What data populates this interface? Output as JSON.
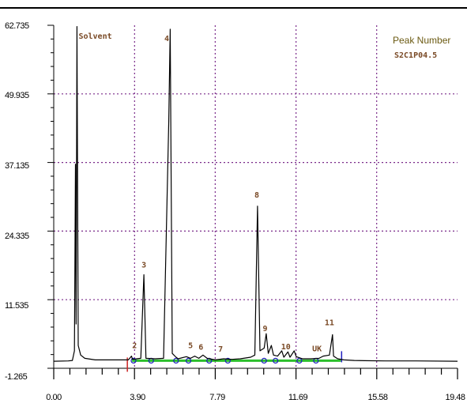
{
  "chart_data": {
    "type": "line",
    "title": "",
    "xlabel": "",
    "ylabel": "",
    "xlim": [
      0.0,
      19.48
    ],
    "ylim": [
      -1.265,
      62.735
    ],
    "x_ticks": [
      "0.00",
      "3.90",
      "7.79",
      "11.69",
      "15.58",
      "19.48"
    ],
    "y_ticks": [
      "62.735",
      "49.935",
      "37.135",
      "24.335",
      "11.535",
      "-1.265"
    ],
    "grid": "dotted",
    "legend": {
      "title": "Peak Number",
      "sample": "S2C1P04.5",
      "placement": "top-right"
    },
    "series": [
      {
        "points": [
          [
            0.0,
            0.05
          ],
          [
            0.7,
            0.1
          ],
          [
            0.9,
            0.2
          ],
          [
            1.0,
            2.0
          ],
          [
            1.05,
            36.8
          ],
          [
            1.08,
            7.0
          ],
          [
            1.12,
            62.5
          ],
          [
            1.18,
            3.0
          ],
          [
            1.3,
            1.2
          ],
          [
            1.5,
            0.6
          ],
          [
            2.0,
            0.3
          ],
          [
            3.0,
            0.3
          ],
          [
            3.6,
            0.3
          ],
          [
            3.75,
            1.0
          ],
          [
            3.8,
            0.4
          ],
          [
            4.0,
            0.5
          ],
          [
            4.2,
            0.6
          ],
          [
            4.35,
            16.2
          ],
          [
            4.45,
            0.6
          ],
          [
            4.9,
            0.5
          ],
          [
            5.3,
            0.6
          ],
          [
            5.55,
            45.0
          ],
          [
            5.62,
            62.0
          ],
          [
            5.72,
            1.5
          ],
          [
            5.9,
            0.8
          ],
          [
            6.0,
            0.5
          ],
          [
            6.4,
            0.9
          ],
          [
            6.6,
            0.6
          ],
          [
            6.8,
            1.0
          ],
          [
            7.0,
            0.6
          ],
          [
            7.2,
            1.2
          ],
          [
            7.4,
            0.6
          ],
          [
            7.8,
            0.3
          ],
          [
            8.2,
            0.5
          ],
          [
            8.6,
            0.4
          ],
          [
            9.0,
            0.5
          ],
          [
            9.5,
            0.8
          ],
          [
            9.7,
            1.2
          ],
          [
            9.83,
            29.0
          ],
          [
            9.95,
            2.0
          ],
          [
            10.15,
            2.5
          ],
          [
            10.25,
            5.2
          ],
          [
            10.35,
            1.5
          ],
          [
            10.5,
            3.0
          ],
          [
            10.6,
            1.2
          ],
          [
            10.8,
            1.0
          ],
          [
            11.0,
            2.0
          ],
          [
            11.1,
            0.8
          ],
          [
            11.3,
            1.8
          ],
          [
            11.4,
            0.8
          ],
          [
            11.6,
            2.0
          ],
          [
            11.7,
            0.9
          ],
          [
            12.0,
            0.5
          ],
          [
            12.4,
            0.5
          ],
          [
            12.8,
            0.6
          ],
          [
            13.0,
            1.0
          ],
          [
            13.3,
            1.2
          ],
          [
            13.45,
            5.0
          ],
          [
            13.5,
            1.0
          ],
          [
            13.7,
            0.5
          ],
          [
            14.0,
            0.3
          ],
          [
            14.5,
            0.2
          ],
          [
            15.0,
            0.15
          ],
          [
            16.0,
            0.1
          ],
          [
            17.5,
            0.1
          ],
          [
            19.48,
            0.05
          ]
        ]
      }
    ],
    "peak_labels": [
      {
        "text": "Solvent",
        "x": 1.2,
        "y": 60.2
      },
      {
        "text": "4",
        "x": 5.45,
        "y": 59.8
      },
      {
        "text": "8",
        "x": 9.8,
        "y": 30.6
      },
      {
        "text": "3",
        "x": 4.35,
        "y": 17.5
      },
      {
        "text": "11",
        "x": 13.3,
        "y": 6.8
      },
      {
        "text": "9",
        "x": 10.2,
        "y": 5.7
      },
      {
        "text": "2",
        "x": 3.9,
        "y": 2.5
      },
      {
        "text": "5",
        "x": 6.6,
        "y": 2.5
      },
      {
        "text": "6",
        "x": 7.1,
        "y": 2.2
      },
      {
        "text": "7",
        "x": 8.05,
        "y": 1.8
      },
      {
        "text": "10",
        "x": 11.2,
        "y": 2.3
      },
      {
        "text": "UK",
        "x": 12.7,
        "y": 1.9
      }
    ],
    "baseline": {
      "x_start": 3.78,
      "x_end": 13.85,
      "y": 0.15,
      "color": "#2cbf2c"
    },
    "markers": {
      "x": [
        3.85,
        4.7,
        5.9,
        6.5,
        7.5,
        8.4,
        10.15,
        10.7,
        11.85,
        12.65
      ],
      "color": "#1f1fbf"
    },
    "colors": {
      "trace": "#000000",
      "grid": "#7a2a8a",
      "baseline": "#2cbf2c",
      "markers": "#1f1fbf",
      "peak_label": "#7a4a26",
      "legend_title": "#6b5a12"
    }
  }
}
